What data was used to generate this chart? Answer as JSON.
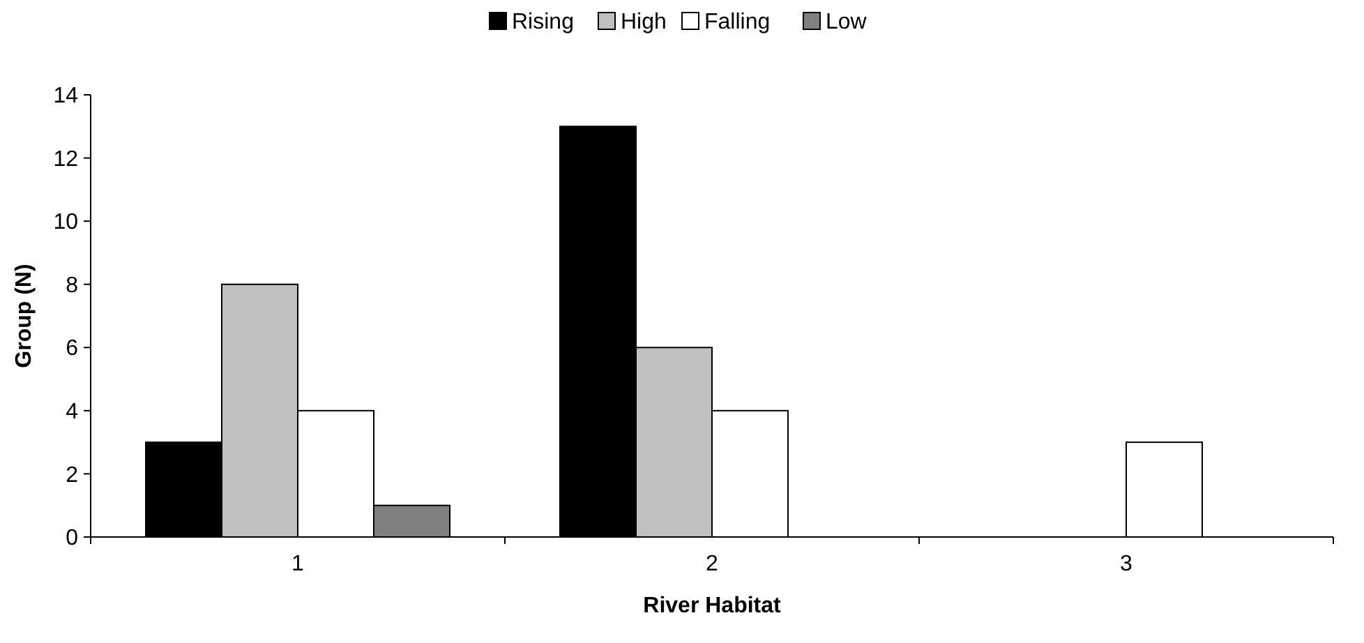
{
  "chart_data": {
    "type": "bar",
    "xlabel": "River Habitat",
    "ylabel": "Group (N)",
    "categories": [
      "1",
      "2",
      "3"
    ],
    "series": [
      {
        "name": "Rising",
        "color": "#000000",
        "values": [
          3,
          13,
          0
        ]
      },
      {
        "name": "High",
        "color": "#c0c0c0",
        "values": [
          8,
          6,
          0
        ]
      },
      {
        "name": "Falling",
        "color": "#ffffff",
        "values": [
          4,
          4,
          3
        ]
      },
      {
        "name": "Low",
        "color": "#808080",
        "values": [
          1,
          0,
          0
        ]
      }
    ],
    "ylim": [
      0,
      14
    ],
    "yticks": [
      0,
      2,
      4,
      6,
      8,
      10,
      12,
      14
    ],
    "grid": false,
    "legend": "top"
  }
}
